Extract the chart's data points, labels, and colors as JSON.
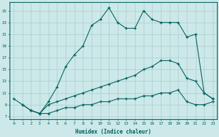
{
  "xlabel": "Humidex (Indice chaleur)",
  "bg_color": "#cce8e8",
  "line_color": "#006060",
  "grid_color": "#aacccc",
  "x_ticks": [
    0,
    1,
    2,
    3,
    4,
    5,
    6,
    7,
    8,
    9,
    10,
    11,
    12,
    13,
    14,
    15,
    16,
    17,
    18,
    19,
    20,
    21,
    22,
    23
  ],
  "y_ticks": [
    7,
    9,
    11,
    13,
    15,
    17,
    19,
    21,
    23,
    25
  ],
  "ylim": [
    6.5,
    26.5
  ],
  "xlim": [
    -0.5,
    23.5
  ],
  "line1_x": [
    0,
    1,
    2,
    3,
    4,
    5,
    6,
    7,
    8,
    9,
    10,
    11,
    12,
    13,
    14,
    15,
    16,
    17,
    18,
    19,
    20,
    21,
    22,
    23
  ],
  "line1_y": [
    10,
    9,
    8,
    7.5,
    9.5,
    12,
    15.5,
    17.5,
    19,
    22.5,
    23.5,
    25.5,
    23,
    22,
    22,
    25,
    23.5,
    23,
    23,
    23,
    20.5,
    21,
    11,
    10
  ],
  "line2_x": [
    1,
    2,
    3,
    4,
    5,
    6,
    7,
    8,
    9,
    10,
    11,
    12,
    13,
    14,
    15,
    16,
    17,
    18,
    19,
    20,
    21,
    22,
    23
  ],
  "line2_y": [
    9,
    8,
    7.5,
    9,
    9.5,
    10,
    10.5,
    11,
    11.5,
    12,
    12.5,
    13,
    13.5,
    14,
    15,
    15.5,
    16.5,
    16.5,
    16,
    13.5,
    13,
    11,
    10
  ],
  "line3_x": [
    2,
    3,
    4,
    5,
    6,
    7,
    8,
    9,
    10,
    11,
    12,
    13,
    14,
    15,
    16,
    17,
    18,
    19,
    20,
    21,
    22,
    23
  ],
  "line3_y": [
    8,
    7.5,
    7.5,
    8,
    8.5,
    8.5,
    9,
    9,
    9.5,
    9.5,
    10,
    10,
    10,
    10.5,
    10.5,
    11,
    11,
    11.5,
    9.5,
    9,
    9,
    9.5
  ]
}
